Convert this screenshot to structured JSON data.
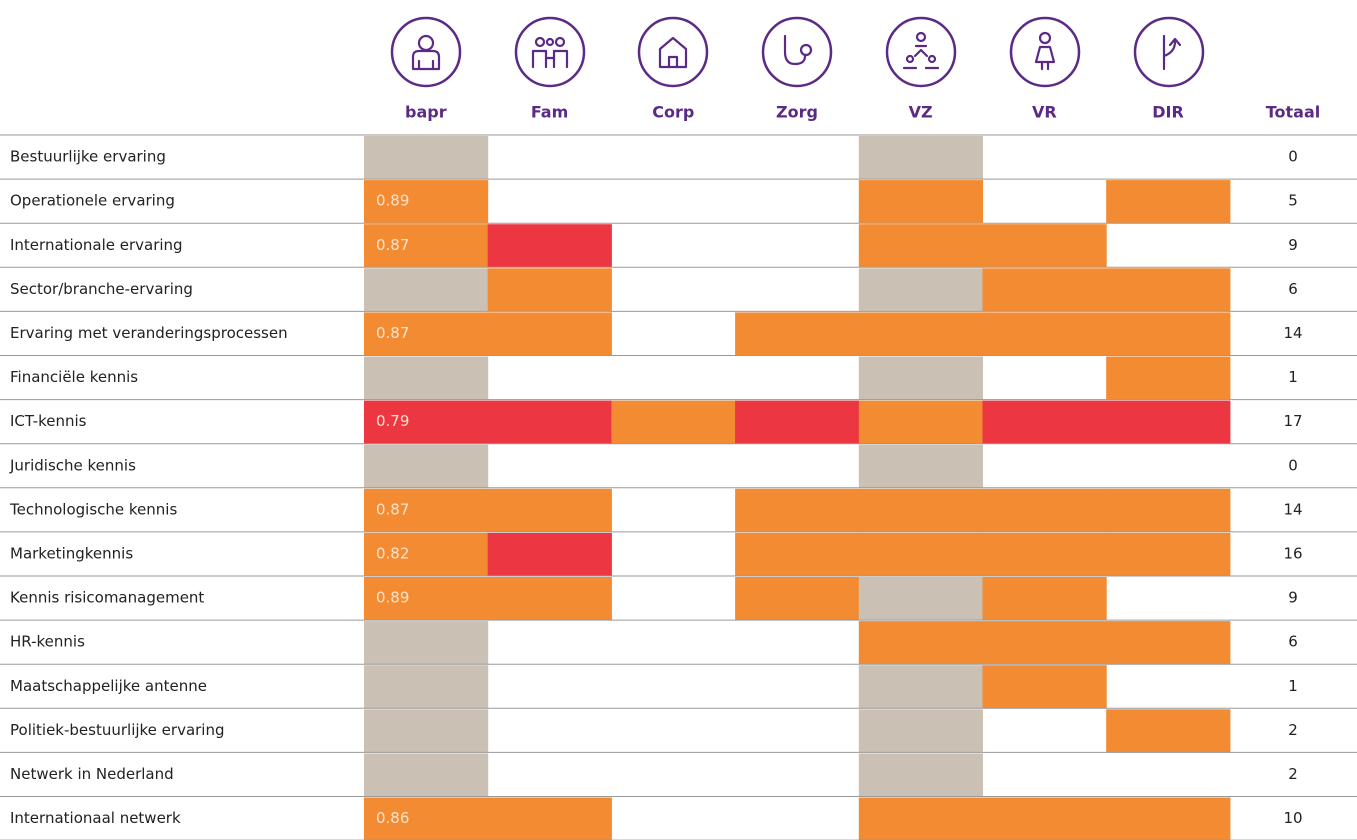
{
  "table": {
    "columns": [
      "bapr",
      "Fam",
      "Corp",
      "Zorg",
      "VZ",
      "VR",
      "DIR"
    ],
    "total_header": "Totaal",
    "rows": [
      {
        "label": "Bestuurlijke ervaring",
        "score": null,
        "cells": [
          "#cbc0b4",
          null,
          null,
          null,
          "#cbc0b4",
          null,
          null
        ],
        "total": 0
      },
      {
        "label": "Operationele ervaring",
        "score": 0.89,
        "cells": [
          "#f28b32",
          null,
          null,
          null,
          "#f28b32",
          null,
          "#f28b32"
        ],
        "total": 5
      },
      {
        "label": "Internationale ervaring",
        "score": 0.87,
        "cells": [
          "#f28b32",
          "#ec3642",
          null,
          null,
          "#f28b32",
          "#f28b32",
          null
        ],
        "total": 9
      },
      {
        "label": "Sector/branche-ervaring",
        "score": null,
        "cells": [
          "#cbc0b4",
          "#f28b32",
          null,
          null,
          "#cbc0b4",
          "#f28b32",
          "#f28b32"
        ],
        "total": 6
      },
      {
        "label": "Ervaring met veranderingsprocessen",
        "score": 0.87,
        "cells": [
          "#f28b32",
          "#f28b32",
          null,
          "#f28b32",
          "#f28b32",
          "#f28b32",
          "#f28b32"
        ],
        "total": 14
      },
      {
        "label": "Financiële kennis",
        "score": null,
        "cells": [
          "#cbc0b4",
          null,
          null,
          null,
          "#cbc0b4",
          null,
          "#f28b32"
        ],
        "total": 1
      },
      {
        "label": "ICT-kennis",
        "score": 0.79,
        "cells": [
          "#ec3642",
          "#ec3642",
          "#f28b32",
          "#ec3642",
          "#f28b32",
          "#ec3642",
          "#ec3642"
        ],
        "total": 17
      },
      {
        "label": "Juridische kennis",
        "score": null,
        "cells": [
          "#cbc0b4",
          null,
          null,
          null,
          "#cbc0b4",
          null,
          null
        ],
        "total": 0
      },
      {
        "label": "Technologische kennis",
        "score": 0.87,
        "cells": [
          "#f28b32",
          "#f28b32",
          null,
          "#f28b32",
          "#f28b32",
          "#f28b32",
          "#f28b32"
        ],
        "total": 14
      },
      {
        "label": "Marketingkennis",
        "score": 0.82,
        "cells": [
          "#f28b32",
          "#ec3642",
          null,
          "#f28b32",
          "#f28b32",
          "#f28b32",
          "#f28b32"
        ],
        "total": 16
      },
      {
        "label": "Kennis risicomanagement",
        "score": 0.89,
        "cells": [
          "#f28b32",
          "#f28b32",
          null,
          "#f28b32",
          "#cbc0b4",
          "#f28b32",
          null
        ],
        "total": 9
      },
      {
        "label": "HR-kennis",
        "score": null,
        "cells": [
          "#cbc0b4",
          null,
          null,
          null,
          "#f28b32",
          "#f28b32",
          "#f28b32"
        ],
        "total": 6
      },
      {
        "label": "Maatschappelijke antenne",
        "score": null,
        "cells": [
          "#cbc0b4",
          null,
          null,
          null,
          "#cbc0b4",
          "#f28b32",
          null
        ],
        "total": 1
      },
      {
        "label": "Politiek-bestuurlijke ervaring",
        "score": null,
        "cells": [
          "#cbc0b4",
          null,
          null,
          null,
          "#cbc0b4",
          null,
          "#f28b32"
        ],
        "total": 2
      },
      {
        "label": "Netwerk in Nederland",
        "score": null,
        "cells": [
          "#cbc0b4",
          null,
          null,
          null,
          "#cbc0b4",
          null,
          null
        ],
        "total": 2
      },
      {
        "label": "Internationaal netwerk",
        "score": 0.86,
        "cells": [
          "#f28b32",
          "#f28b32",
          null,
          null,
          "#f28b32",
          "#f28b32",
          "#f28b32"
        ],
        "total": 10
      }
    ]
  }
}
